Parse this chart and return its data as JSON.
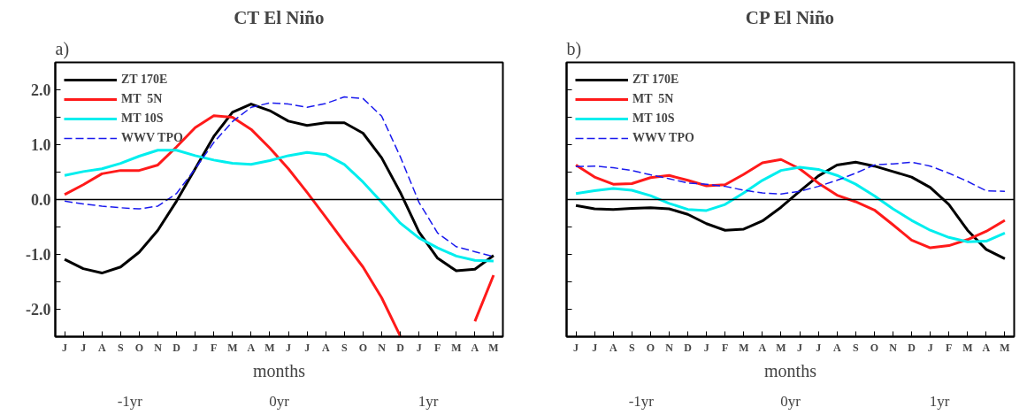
{
  "chart_data": [
    {
      "type": "line",
      "title": "CT El Niño",
      "xlabel": "months",
      "categories": [
        "J",
        "J",
        "A",
        "S",
        "O",
        "N",
        "D",
        "J",
        "F",
        "M",
        "A",
        "M",
        "J",
        "J",
        "A",
        "S",
        "O",
        "N",
        "D",
        "J",
        "F",
        "M",
        "A",
        "M"
      ],
      "ylim": [
        -2.5,
        2.5
      ],
      "yticks": [
        {
          "value": -2.5,
          "label": null
        },
        {
          "value": -2,
          "label": "-2.0"
        },
        {
          "value": -1.5,
          "label": null
        },
        {
          "value": -1,
          "label": "-1.0"
        },
        {
          "value": -0.5,
          "label": null
        },
        {
          "value": 0,
          "label": "0.0"
        },
        {
          "value": 0.5,
          "label": null
        },
        {
          "value": 1,
          "label": "1.0"
        },
        {
          "value": 1.5,
          "label": null
        },
        {
          "value": 2,
          "label": "2.0"
        },
        {
          "value": 2.5,
          "label": null
        }
      ],
      "grid": false,
      "legend": "top left",
      "ref_lines": [
        {
          "axis": "y",
          "value": 0,
          "color": "#000000"
        }
      ],
      "annotations": [
        "a)",
        "-1yr",
        "0yr",
        "1yr"
      ],
      "series": [
        {
          "name": "ZT 170E",
          "color": "#000000",
          "line_style": "solid",
          "values": [
            -1.09,
            -1.26,
            -1.34,
            -1.23,
            -0.96,
            -0.56,
            -0.03,
            0.56,
            1.15,
            1.59,
            1.74,
            1.62,
            1.43,
            1.35,
            1.4,
            1.4,
            1.21,
            0.76,
            0.13,
            -0.59,
            -1.07,
            -1.3,
            -1.27,
            -1.02
          ]
        },
        {
          "name": "MT  5N",
          "color": "#ff1a1a",
          "line_style": "solid",
          "values": [
            0.09,
            0.27,
            0.47,
            0.53,
            0.53,
            0.63,
            0.96,
            1.31,
            1.53,
            1.5,
            1.28,
            0.94,
            0.56,
            0.13,
            -0.32,
            -0.78,
            -1.23,
            -1.79,
            -2.49,
            null,
            null,
            null,
            -2.22,
            -1.38
          ]
        },
        {
          "name": "MT 10S",
          "color": "#00eeee",
          "line_style": "solid",
          "values": [
            0.44,
            0.51,
            0.56,
            0.66,
            0.79,
            0.9,
            0.9,
            0.8,
            0.72,
            0.66,
            0.64,
            0.71,
            0.8,
            0.86,
            0.82,
            0.64,
            0.32,
            -0.05,
            -0.43,
            -0.7,
            -0.88,
            -1.03,
            -1.11,
            -1.12
          ]
        },
        {
          "name": "WWV TPO",
          "color": "#1a1aee",
          "line_style": "dashed",
          "values": [
            -0.03,
            -0.08,
            -0.12,
            -0.15,
            -0.17,
            -0.12,
            0.11,
            0.56,
            1.04,
            1.42,
            1.68,
            1.76,
            1.74,
            1.68,
            1.75,
            1.87,
            1.84,
            1.52,
            0.78,
            -0.05,
            -0.61,
            -0.86,
            -0.95,
            -1.04
          ]
        }
      ]
    },
    {
      "type": "line",
      "title": "CP El Niño",
      "xlabel": "months",
      "categories": [
        "J",
        "J",
        "A",
        "S",
        "O",
        "N",
        "D",
        "J",
        "F",
        "M",
        "A",
        "M",
        "J",
        "J",
        "A",
        "S",
        "O",
        "N",
        "D",
        "J",
        "F",
        "M",
        "A",
        "M"
      ],
      "ylim": [
        -2.5,
        2.5
      ],
      "yticks": [
        {
          "value": -2.5,
          "label": null
        },
        {
          "value": -2,
          "label": null
        },
        {
          "value": -1.5,
          "label": null
        },
        {
          "value": -1,
          "label": null
        },
        {
          "value": -0.5,
          "label": null
        },
        {
          "value": 0,
          "label": null
        },
        {
          "value": 0.5,
          "label": null
        },
        {
          "value": 1,
          "label": null
        },
        {
          "value": 1.5,
          "label": null
        },
        {
          "value": 2,
          "label": null
        },
        {
          "value": 2.5,
          "label": null
        }
      ],
      "tick_labels": "x",
      "grid": false,
      "legend": "top left",
      "ref_lines": [
        {
          "axis": "y",
          "value": 0,
          "color": "#000000"
        }
      ],
      "annotations": [
        "b)",
        "-1yr",
        "0yr",
        "1yr"
      ],
      "series": [
        {
          "name": "ZT 170E",
          "color": "#000000",
          "line_style": "solid",
          "values": [
            -0.11,
            -0.17,
            -0.18,
            -0.16,
            -0.15,
            -0.17,
            -0.27,
            -0.44,
            -0.56,
            -0.54,
            -0.39,
            -0.14,
            0.15,
            0.43,
            0.63,
            0.68,
            0.61,
            0.51,
            0.41,
            0.22,
            -0.09,
            -0.56,
            -0.91,
            -1.08
          ]
        },
        {
          "name": "MT  5N",
          "color": "#ff1a1a",
          "line_style": "solid",
          "values": [
            0.63,
            0.41,
            0.28,
            0.29,
            0.4,
            0.44,
            0.35,
            0.25,
            0.27,
            0.46,
            0.67,
            0.73,
            0.56,
            0.3,
            0.08,
            -0.04,
            -0.19,
            -0.46,
            -0.74,
            -0.88,
            -0.84,
            -0.73,
            -0.58,
            -0.38
          ]
        },
        {
          "name": "MT 10S",
          "color": "#00eeee",
          "line_style": "solid",
          "values": [
            0.11,
            0.16,
            0.2,
            0.17,
            0.07,
            -0.07,
            -0.18,
            -0.2,
            -0.09,
            0.12,
            0.35,
            0.53,
            0.59,
            0.55,
            0.44,
            0.28,
            0.07,
            -0.17,
            -0.38,
            -0.56,
            -0.69,
            -0.77,
            -0.76,
            -0.61
          ]
        },
        {
          "name": "WWV TPO",
          "color": "#1a1aee",
          "line_style": "dashed",
          "values": [
            0.6,
            0.61,
            0.58,
            0.53,
            0.45,
            0.38,
            0.3,
            0.28,
            0.24,
            0.17,
            0.12,
            0.1,
            0.15,
            0.24,
            0.35,
            0.48,
            0.63,
            0.65,
            0.68,
            0.61,
            0.48,
            0.33,
            0.16,
            0.15
          ]
        }
      ]
    }
  ]
}
